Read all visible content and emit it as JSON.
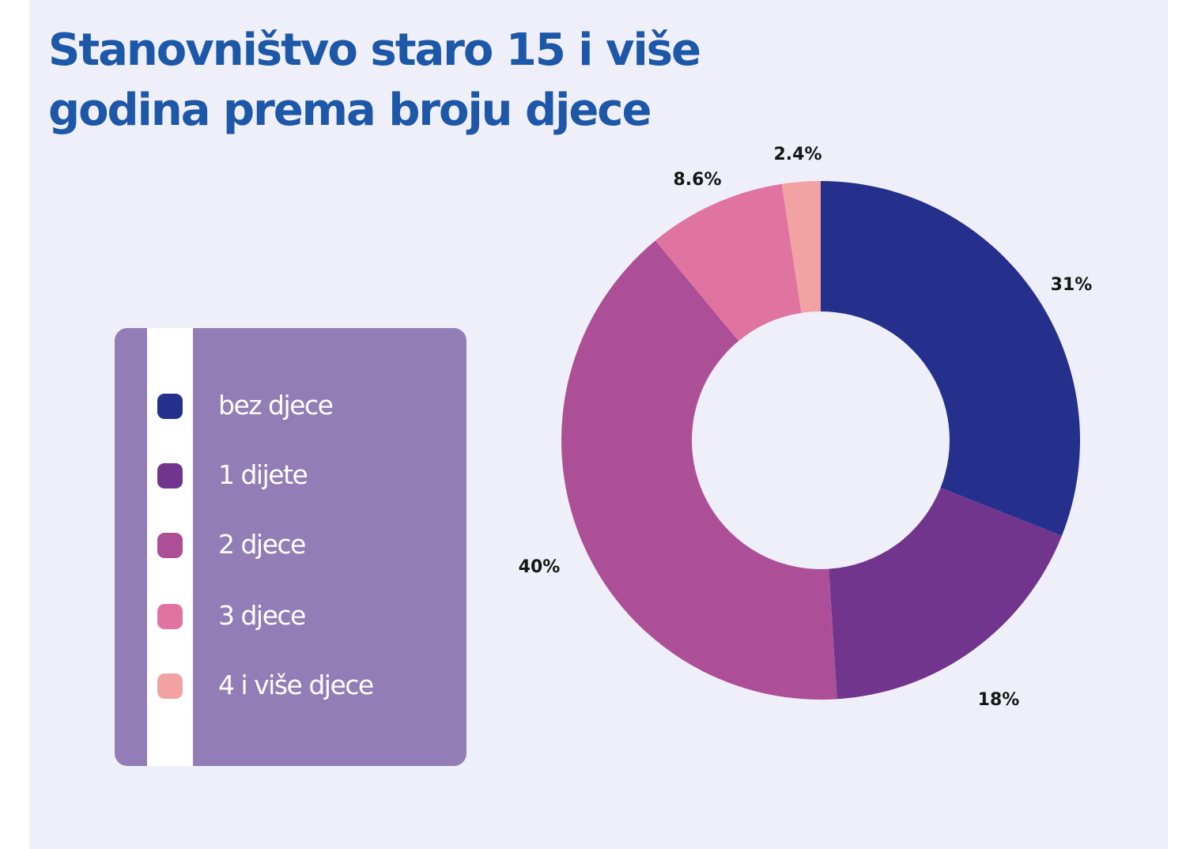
{
  "title": "Stanovništvo staro 15 i više godina prema broju djece",
  "chart_data": {
    "type": "pie",
    "donut": true,
    "title": "Stanovništvo staro 15 i više godina prema broju djece",
    "legend_position": "left",
    "categories": [
      "bez djece",
      "1 dijete",
      "2 djece",
      "3 djece",
      "4 i više djece"
    ],
    "values": [
      31,
      18,
      40,
      8.6,
      2.4
    ],
    "labels": [
      "31%",
      "18%",
      "40%",
      "8.6%",
      "2.4%"
    ],
    "colors": [
      "#24308b",
      "#71358d",
      "#ad4f97",
      "#df74a1",
      "#f2a2a3"
    ]
  }
}
